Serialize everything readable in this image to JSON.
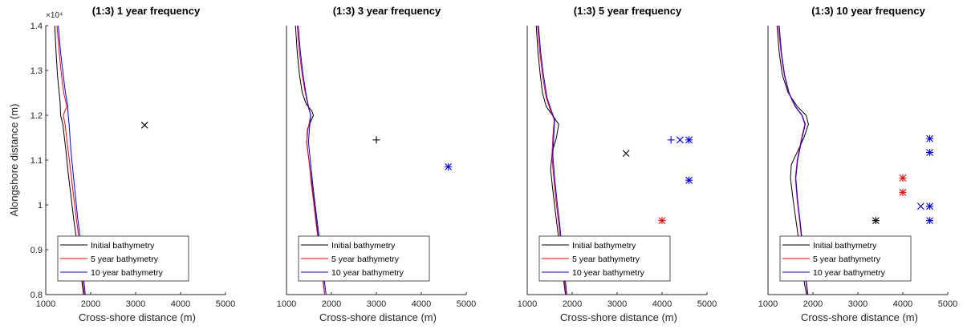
{
  "chart_data": [
    {
      "type": "line",
      "title": "(1:3) 1 year frequency",
      "xlabel": "Cross-shore distance (m)",
      "ylabel": "Alongshore distance (m)",
      "xlim": [
        1000,
        5000
      ],
      "ylim": [
        8000,
        14000
      ],
      "xticks": [
        "1000",
        "2000",
        "3000",
        "4000",
        "5000"
      ],
      "yticks": [
        "0.8",
        "0.9",
        "1",
        "1.1",
        "1.2",
        "1.3",
        "1.4"
      ],
      "y_exponent_label": "×10⁴",
      "grid": false,
      "legend_position": "bottom-left",
      "series": [
        {
          "name": "Initial bathymetry",
          "color": "#000000",
          "x": [
            1200,
            1230,
            1260,
            1290,
            1320,
            1330,
            1380,
            1450,
            1500,
            1560,
            1620,
            1660,
            1720,
            1780,
            1840
          ],
          "y": [
            14000,
            13400,
            12900,
            12600,
            12300,
            12000,
            11800,
            11200,
            10700,
            10200,
            9700,
            9400,
            9000,
            8500,
            8000
          ]
        },
        {
          "name": "5 year bathymetry",
          "color": "#ff0000",
          "x": [
            1250,
            1300,
            1350,
            1400,
            1470,
            1390,
            1430,
            1500,
            1560,
            1620,
            1680,
            1720,
            1760,
            1800,
            1860
          ],
          "y": [
            14000,
            13400,
            12900,
            12500,
            12200,
            12000,
            11800,
            11200,
            10700,
            10200,
            9700,
            9400,
            9000,
            8500,
            8000
          ]
        },
        {
          "name": "10 year bathymetry",
          "color": "#0000ff",
          "x": [
            1280,
            1330,
            1390,
            1440,
            1490,
            1500,
            1520,
            1560,
            1610,
            1660,
            1710,
            1750,
            1790,
            1830,
            1880
          ],
          "y": [
            14000,
            13400,
            12900,
            12500,
            12200,
            12000,
            11800,
            11200,
            10700,
            10200,
            9700,
            9400,
            9000,
            8500,
            8000
          ]
        }
      ],
      "markers": [
        {
          "x": 3200,
          "y": 11780,
          "symbol": "x",
          "color": "#000000"
        }
      ]
    },
    {
      "type": "line",
      "title": "(1:3) 3 year frequency",
      "xlabel": "Cross-shore distance (m)",
      "ylabel": "",
      "xlim": [
        1000,
        5000
      ],
      "ylim": [
        8000,
        14000
      ],
      "xticks": [
        "1000",
        "2000",
        "3000",
        "4000",
        "5000"
      ],
      "yticks": [],
      "grid": false,
      "legend_position": "bottom-left",
      "series": [
        {
          "name": "Initial bathymetry",
          "color": "#000000",
          "x": [
            1200,
            1240,
            1290,
            1350,
            1440,
            1560,
            1600,
            1470,
            1450,
            1500,
            1560,
            1620,
            1680,
            1740,
            1800,
            1850
          ],
          "y": [
            14000,
            13400,
            12900,
            12500,
            12250,
            12100,
            12000,
            11700,
            11400,
            11000,
            10500,
            10000,
            9500,
            9000,
            8500,
            8000
          ]
        },
        {
          "name": "5 year bathymetry",
          "color": "#ff0000",
          "x": [
            1240,
            1290,
            1350,
            1420,
            1480,
            1540,
            1480,
            1450,
            1500,
            1550,
            1610,
            1670,
            1730,
            1790,
            1850
          ],
          "y": [
            14000,
            13400,
            12900,
            12500,
            12200,
            12000,
            11700,
            11400,
            11000,
            10500,
            10000,
            9500,
            9000,
            8500,
            8000
          ]
        },
        {
          "name": "10 year bathymetry",
          "color": "#0000ff",
          "x": [
            1260,
            1310,
            1370,
            1430,
            1490,
            1540,
            1510,
            1490,
            1530,
            1580,
            1640,
            1700,
            1760,
            1820,
            1880
          ],
          "y": [
            14000,
            13400,
            12900,
            12500,
            12200,
            12000,
            11700,
            11400,
            11000,
            10500,
            10000,
            9500,
            9000,
            8500,
            8000
          ]
        }
      ],
      "markers": [
        {
          "x": 3000,
          "y": 11450,
          "symbol": "+",
          "color": "#000000"
        },
        {
          "x": 4600,
          "y": 10850,
          "symbol": "*",
          "color": "#0000ff"
        }
      ]
    },
    {
      "type": "line",
      "title": "(1:3) 5 year frequency",
      "xlabel": "Cross-shore distance (m)",
      "ylabel": "",
      "xlim": [
        1000,
        5000
      ],
      "ylim": [
        8000,
        14000
      ],
      "xticks": [
        "1000",
        "2000",
        "3000",
        "4000",
        "5000"
      ],
      "yticks": [],
      "grid": false,
      "legend_position": "bottom-left",
      "series": [
        {
          "name": "Initial bathymetry",
          "color": "#000000",
          "x": [
            1200,
            1240,
            1290,
            1340,
            1420,
            1560,
            1700,
            1650,
            1560,
            1520,
            1560,
            1620,
            1680,
            1740,
            1800,
            1850
          ],
          "y": [
            14000,
            13400,
            12900,
            12500,
            12200,
            12000,
            11800,
            11500,
            11200,
            10800,
            10400,
            9900,
            9400,
            8900,
            8400,
            8000
          ]
        },
        {
          "name": "5 year bathymetry",
          "color": "#ff0000",
          "x": [
            1230,
            1280,
            1340,
            1420,
            1520,
            1600,
            1570,
            1550,
            1590,
            1640,
            1700,
            1760,
            1820,
            1860
          ],
          "y": [
            14000,
            13400,
            12900,
            12400,
            12100,
            11900,
            11500,
            11100,
            10600,
            10100,
            9600,
            9000,
            8400,
            8000
          ]
        },
        {
          "name": "10 year bathymetry",
          "color": "#0000ff",
          "x": [
            1250,
            1300,
            1360,
            1440,
            1540,
            1610,
            1590,
            1570,
            1610,
            1660,
            1720,
            1780,
            1840,
            1880
          ],
          "y": [
            14000,
            13400,
            12900,
            12400,
            12100,
            11900,
            11500,
            11100,
            10600,
            10100,
            9600,
            9000,
            8400,
            8000
          ]
        }
      ],
      "markers": [
        {
          "x": 3200,
          "y": 11150,
          "symbol": "x",
          "color": "#000000"
        },
        {
          "x": 4200,
          "y": 11450,
          "symbol": "+",
          "color": "#0000ff"
        },
        {
          "x": 4400,
          "y": 11450,
          "symbol": "x",
          "color": "#0000ff"
        },
        {
          "x": 4600,
          "y": 11450,
          "symbol": "*",
          "color": "#0000ff"
        },
        {
          "x": 4600,
          "y": 10550,
          "symbol": "*",
          "color": "#0000ff"
        },
        {
          "x": 4000,
          "y": 9650,
          "symbol": "*",
          "color": "#ff0000"
        }
      ]
    },
    {
      "type": "line",
      "title": "(1:3) 10 year frequency",
      "xlabel": "Cross-shore distance (m)",
      "ylabel": "",
      "xlim": [
        1000,
        5000
      ],
      "ylim": [
        8000,
        14000
      ],
      "xticks": [
        "1000",
        "2000",
        "3000",
        "4000",
        "5000"
      ],
      "yticks": [],
      "grid": false,
      "legend_position": "bottom-left",
      "series": [
        {
          "name": "Initial bathymetry",
          "color": "#000000",
          "x": [
            1200,
            1250,
            1320,
            1450,
            1650,
            1850,
            1900,
            1800,
            1660,
            1520,
            1500,
            1560,
            1630,
            1700,
            1760,
            1820,
            1860
          ],
          "y": [
            14000,
            13400,
            12900,
            12500,
            12200,
            12000,
            11800,
            11500,
            11200,
            10900,
            10600,
            10100,
            9600,
            9100,
            8600,
            8200,
            8000
          ]
        },
        {
          "name": "5 year bathymetry",
          "color": "#ff0000",
          "x": [
            1230,
            1290,
            1360,
            1460,
            1600,
            1750,
            1820,
            1750,
            1650,
            1610,
            1650,
            1710,
            1770,
            1830,
            1880
          ],
          "y": [
            14000,
            13400,
            12900,
            12500,
            12200,
            12000,
            11800,
            11500,
            11000,
            10600,
            10100,
            9600,
            9000,
            8400,
            8000
          ]
        },
        {
          "name": "10 year bathymetry",
          "color": "#0000ff",
          "x": [
            1250,
            1300,
            1370,
            1470,
            1610,
            1760,
            1830,
            1760,
            1660,
            1620,
            1660,
            1720,
            1780,
            1840,
            1890
          ],
          "y": [
            14000,
            13400,
            12900,
            12500,
            12200,
            12000,
            11800,
            11500,
            11000,
            10600,
            10100,
            9600,
            9000,
            8400,
            8000
          ]
        }
      ],
      "markers": [
        {
          "x": 4600,
          "y": 11480,
          "symbol": "*",
          "color": "#0000ff"
        },
        {
          "x": 4600,
          "y": 11170,
          "symbol": "*",
          "color": "#0000ff"
        },
        {
          "x": 4000,
          "y": 10600,
          "symbol": "*",
          "color": "#ff0000"
        },
        {
          "x": 4000,
          "y": 10280,
          "symbol": "*",
          "color": "#ff0000"
        },
        {
          "x": 4400,
          "y": 9970,
          "symbol": "x",
          "color": "#0000ff"
        },
        {
          "x": 4600,
          "y": 9970,
          "symbol": "*",
          "color": "#0000ff"
        },
        {
          "x": 4600,
          "y": 9650,
          "symbol": "*",
          "color": "#0000ff"
        },
        {
          "x": 3400,
          "y": 9650,
          "symbol": "*",
          "color": "#000000"
        }
      ]
    }
  ]
}
